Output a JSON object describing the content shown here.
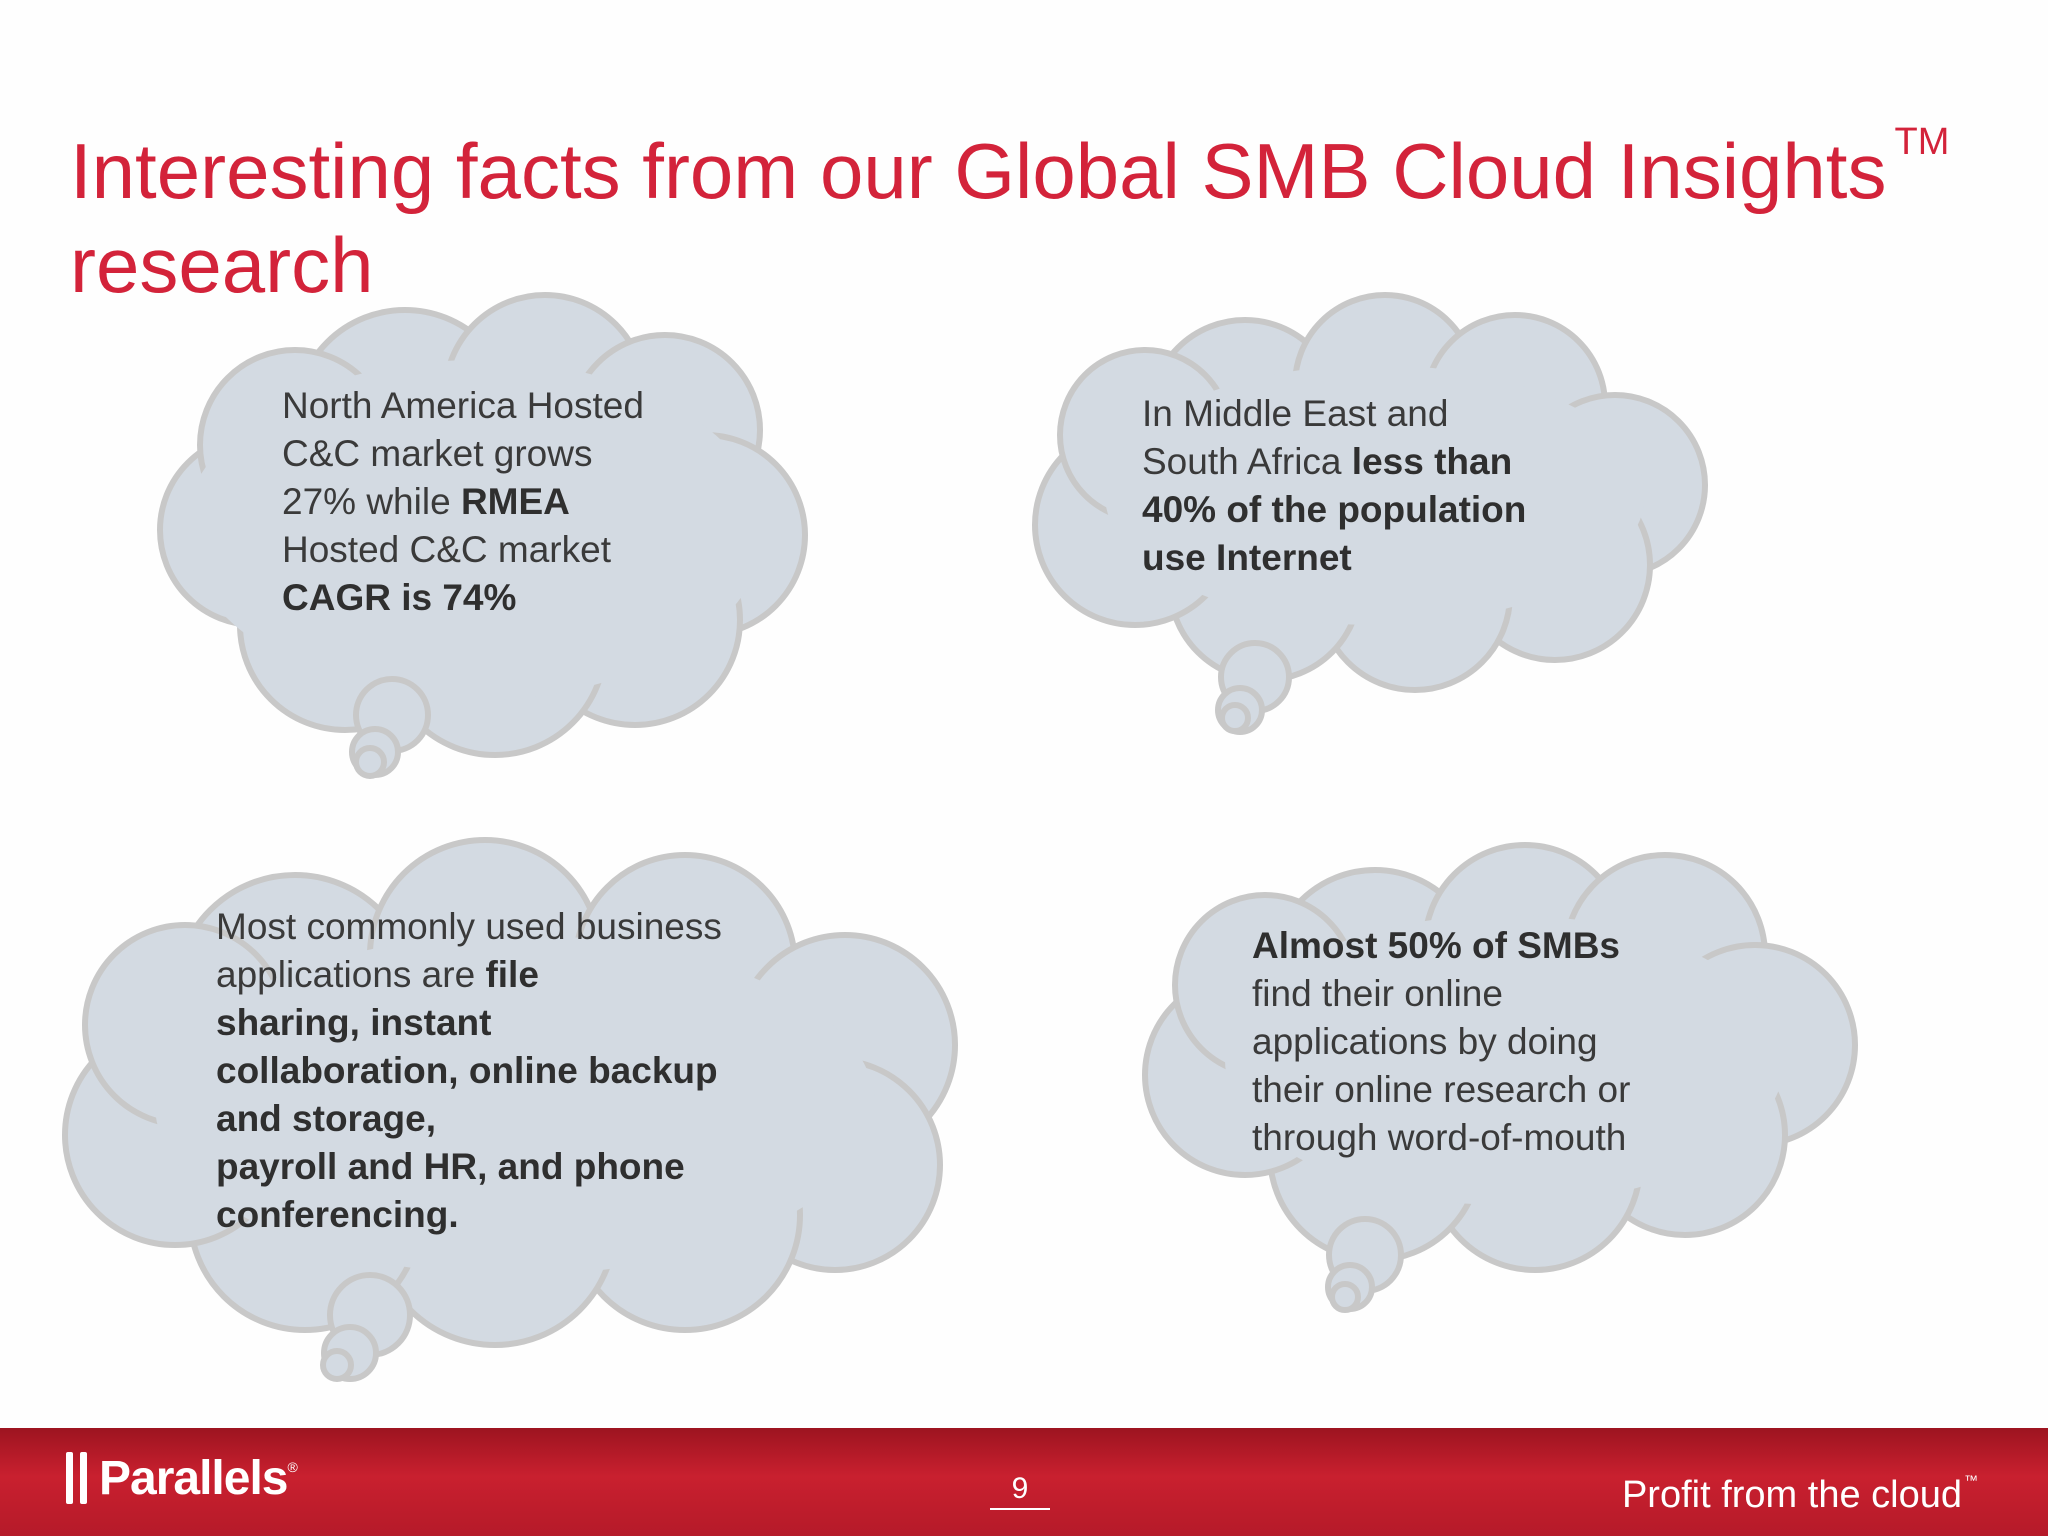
{
  "slide": {
    "title_line1": "Interesting facts from our Global SMB Cloud Insights",
    "title_tm": "TM",
    "title_line2": "research"
  },
  "bubbles": [
    {
      "id": "north-america",
      "segments": [
        {
          "text": "North America Hosted",
          "bold": false
        },
        {
          "br": true
        },
        {
          "text": "C&C market grows",
          "bold": false
        },
        {
          "br": true
        },
        {
          "text": "27% while ",
          "bold": false
        },
        {
          "text": "RMEA",
          "bold": true
        },
        {
          "br": true
        },
        {
          "text": "Hosted C&C market",
          "bold": false
        },
        {
          "br": true
        },
        {
          "text": "CAGR is 74%",
          "bold": true
        }
      ]
    },
    {
      "id": "middle-east",
      "segments": [
        {
          "text": "In Middle East and",
          "bold": false
        },
        {
          "br": true
        },
        {
          "text": "South Africa ",
          "bold": false
        },
        {
          "text": "less than",
          "bold": true
        },
        {
          "br": true
        },
        {
          "text": "40% of the population",
          "bold": true
        },
        {
          "br": true
        },
        {
          "text": "use Internet",
          "bold": true
        }
      ]
    },
    {
      "id": "business-apps",
      "segments": [
        {
          "text": "Most commonly used business",
          "bold": false
        },
        {
          "br": true
        },
        {
          "text": "applications are ",
          "bold": false
        },
        {
          "text": "file",
          "bold": true
        },
        {
          "br": true
        },
        {
          "text": "sharing, instant",
          "bold": true
        },
        {
          "br": true
        },
        {
          "text": "collaboration, online backup",
          "bold": true
        },
        {
          "br": true
        },
        {
          "text": "and storage,",
          "bold": true
        },
        {
          "br": true
        },
        {
          "text": "payroll and HR, and phone",
          "bold": true
        },
        {
          "br": true
        },
        {
          "text": "conferencing.",
          "bold": true
        }
      ]
    },
    {
      "id": "smb-research",
      "segments": [
        {
          "text": "Almost 50% of SMBs",
          "bold": true
        },
        {
          "br": true
        },
        {
          "text": "find their online",
          "bold": false
        },
        {
          "br": true
        },
        {
          "text": "applications by doing",
          "bold": false
        },
        {
          "br": true
        },
        {
          "text": "their online research or",
          "bold": false
        },
        {
          "br": true
        },
        {
          "text": "through word-of-mouth",
          "bold": false
        }
      ]
    }
  ],
  "footer": {
    "logo_text": "Parallels",
    "logo_reg": "®",
    "page_number": "9",
    "tagline": "Profit from the cloud",
    "tagline_tm": "™"
  },
  "colors": {
    "title": "#d3233a",
    "bubble_fill": "#d3dae2",
    "bubble_stroke": "#c8c8c8",
    "footer_red": "#c9202f"
  }
}
